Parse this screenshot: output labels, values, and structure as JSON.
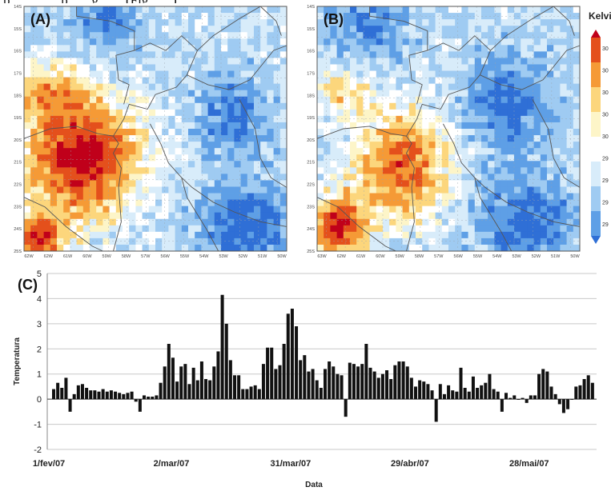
{
  "header_text": "p... ... ... ...p... ...g... ... (Fig... ...)",
  "colorbar": {
    "unit_label": "Kelvin",
    "tick_labels": [
      "30",
      "30",
      "30",
      "30",
      "30",
      "29",
      "29",
      "29",
      "29"
    ],
    "colors": [
      "#c0001a",
      "#e4501c",
      "#f59a36",
      "#fcd67c",
      "#fdf5c8",
      "#ffffff",
      "#d8ecfa",
      "#9fcbf2",
      "#5e9fe6",
      "#2f6fd6"
    ]
  },
  "map_a": {
    "label": "(A)",
    "lat_labels": [
      "14S",
      "15S",
      "16S",
      "17S",
      "18S",
      "19S",
      "20S",
      "21S",
      "22S",
      "23S",
      "24S",
      "25S"
    ],
    "lon_labels": [
      "62W",
      "62W",
      "61W",
      "60W",
      "59W",
      "58W",
      "57W",
      "56W",
      "55W",
      "54W",
      "53W",
      "52W",
      "51W",
      "50W"
    ]
  },
  "map_b": {
    "label": "(B)",
    "lat_labels": [
      "14S",
      "15S",
      "16S",
      "17S",
      "18S",
      "19S",
      "20S",
      "21S",
      "22S",
      "23S",
      "24S",
      "25S"
    ],
    "lon_labels": [
      "63W",
      "62W",
      "61W",
      "60W",
      "59W",
      "58W",
      "57W",
      "56W",
      "55W",
      "54W",
      "53W",
      "52W",
      "51W",
      "50W"
    ]
  },
  "chart_data": {
    "type": "bar",
    "label": "(C)",
    "title": "",
    "xlabel": "Data",
    "ylabel": "Temperatura",
    "ylim": [
      -2,
      5
    ],
    "yticks": [
      5,
      4,
      3,
      2,
      1,
      0,
      -1,
      -2
    ],
    "ytick_labels": [
      "5",
      "4",
      "3",
      "2",
      "1",
      "0",
      "-1",
      "-2"
    ],
    "grid": true,
    "x_tick_labels": [
      "1/fev/07",
      "2/mar/07",
      "31/mar/07",
      "29/abr/07",
      "28/mai/07"
    ],
    "x_tick_positions": [
      0,
      29,
      58,
      87,
      116
    ],
    "series": [
      {
        "values": [
          0.4,
          0.65,
          0.45,
          0.85,
          -0.5,
          0.2,
          0.55,
          0.6,
          0.45,
          0.35,
          0.35,
          0.3,
          0.4,
          0.3,
          0.35,
          0.3,
          0.25,
          0.2,
          0.25,
          0.3,
          -0.1,
          -0.5,
          0.15,
          0.1,
          0.1,
          0.15,
          0.65,
          1.3,
          2.2,
          1.65,
          0.7,
          1.3,
          1.4,
          0.6,
          1.25,
          0.75,
          1.5,
          0.8,
          0.75,
          1.3,
          1.9,
          4.15,
          3.0,
          1.55,
          0.95,
          0.95,
          0.4,
          0.4,
          0.5,
          0.55,
          0.4,
          1.4,
          2.05,
          2.05,
          1.2,
          1.35,
          2.2,
          3.4,
          3.6,
          2.9,
          1.55,
          1.75,
          1.1,
          1.2,
          0.75,
          0.45,
          1.2,
          1.5,
          1.3,
          1.0,
          0.95,
          -0.7,
          1.45,
          1.4,
          1.3,
          1.4,
          2.2,
          1.25,
          1.1,
          0.85,
          1.0,
          1.15,
          0.8,
          1.35,
          1.5,
          1.5,
          1.3,
          0.85,
          0.5,
          0.75,
          0.7,
          0.6,
          0.35,
          -0.9,
          0.6,
          0.2,
          0.55,
          0.35,
          0.3,
          1.25,
          0.45,
          0.3,
          0.9,
          0.45,
          0.55,
          0.65,
          1.0,
          0.4,
          0.3,
          -0.5,
          0.25,
          0.05,
          0.15,
          0.0,
          0.05,
          -0.15,
          0.15,
          0.15,
          1.0,
          1.2,
          1.1,
          0.5,
          0.2,
          -0.2,
          -0.55,
          -0.4,
          0.0,
          0.5,
          0.55,
          0.8,
          0.95,
          0.65
        ]
      }
    ]
  }
}
